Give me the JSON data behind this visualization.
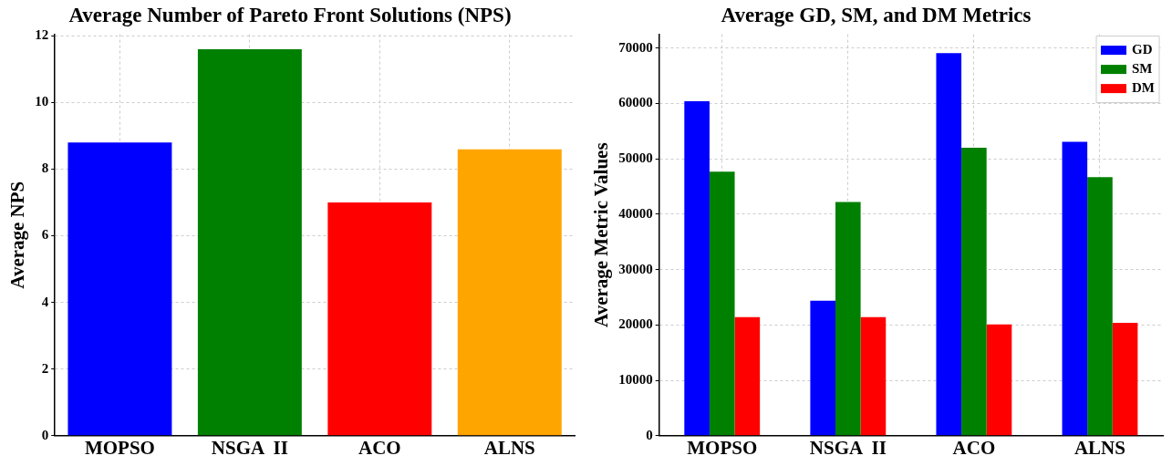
{
  "chart_data": [
    {
      "type": "bar",
      "title": "Average Number of Pareto Front Solutions (NPS)",
      "ylabel": "Average NPS",
      "categories": [
        "MOPSO",
        "NSGA  II",
        "ACO",
        "ALNS"
      ],
      "values": [
        8.8,
        11.6,
        7.0,
        8.6
      ],
      "colors": [
        "#0000ff",
        "#008000",
        "#ff0000",
        "#ffa500"
      ],
      "ylim": [
        0,
        12.05
      ],
      "yticks": [
        0,
        2,
        4,
        6,
        8,
        10,
        12
      ],
      "grid": true
    },
    {
      "type": "bar",
      "title": "Average GD, SM, and DM Metrics",
      "ylabel": "Average Metric Values",
      "categories": [
        "MOPSO",
        "NSGA  II",
        "ACO",
        "ALNS"
      ],
      "series": [
        {
          "name": "GD",
          "color": "#0000ff",
          "values": [
            60400,
            24400,
            69100,
            53100
          ]
        },
        {
          "name": "SM",
          "color": "#008000",
          "values": [
            47700,
            42200,
            52000,
            46700
          ]
        },
        {
          "name": "DM",
          "color": "#ff0000",
          "values": [
            21400,
            21400,
            20100,
            20400
          ]
        }
      ],
      "ylim": [
        0,
        72500
      ],
      "yticks": [
        0,
        10000,
        20000,
        30000,
        40000,
        50000,
        60000,
        70000
      ],
      "grid": true,
      "legend": "top right"
    }
  ]
}
